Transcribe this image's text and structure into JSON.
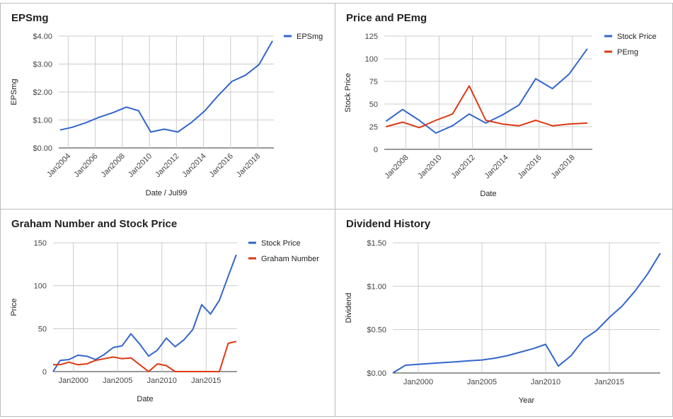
{
  "chart_data": [
    {
      "type": "line",
      "title": "EPSmg",
      "xlabel": "Date / Jul99",
      "ylabel": "EPSmg",
      "ylim": [
        0,
        4
      ],
      "xlim": [
        2003.3,
        2019.2
      ],
      "y_ticks": [
        0,
        1,
        2,
        3,
        4
      ],
      "y_tick_labels": [
        "$0.00",
        "$1.00",
        "$2.00",
        "$3.00",
        "$4.00"
      ],
      "x_ticks": [
        2004,
        2006,
        2008,
        2010,
        2012,
        2014,
        2016,
        2018
      ],
      "x_tick_labels": [
        "Jan2004",
        "Jan2006",
        "Jan2008",
        "Jan2010",
        "Jan2012",
        "Jan2014",
        "Jan2016",
        "Jan2018"
      ],
      "x_tick_rotation": -45,
      "legend_position": "top-right",
      "grid": true,
      "series": [
        {
          "name": "EPSmg",
          "color": "#3366cc",
          "x": [
            2003.4,
            2004.3,
            2005.3,
            2006.3,
            2007.3,
            2008.3,
            2009.2,
            2010.1,
            2011.1,
            2012.1,
            2013.1,
            2014.1,
            2015.1,
            2016.1,
            2017.1,
            2018.1,
            2019.1
          ],
          "y": [
            0.64,
            0.74,
            0.9,
            1.1,
            1.26,
            1.46,
            1.33,
            0.57,
            0.67,
            0.57,
            0.91,
            1.33,
            1.88,
            2.38,
            2.6,
            2.98,
            3.83
          ]
        }
      ]
    },
    {
      "type": "line",
      "title": "Price and PEmg",
      "xlabel": "Date",
      "ylabel": "Stock Price",
      "ylim": [
        0,
        125
      ],
      "xlim": [
        2006.7,
        2019.2
      ],
      "y_ticks": [
        0,
        25,
        50,
        75,
        100,
        125
      ],
      "y_tick_labels": [
        "0",
        "25",
        "50",
        "75",
        "100",
        "125"
      ],
      "x_ticks": [
        2008,
        2010,
        2012,
        2014,
        2016,
        2018
      ],
      "x_tick_labels": [
        "Jan2008",
        "Jan2010",
        "Jan2012",
        "Jan2014",
        "Jan2016",
        "Jan2018"
      ],
      "x_tick_rotation": -45,
      "legend_position": "top-right",
      "grid": true,
      "series": [
        {
          "name": "Stock Price",
          "color": "#3366cc",
          "x": [
            2006.8,
            2007.8,
            2008.8,
            2009.8,
            2010.8,
            2011.8,
            2012.8,
            2013.8,
            2014.8,
            2015.8,
            2016.8,
            2017.8,
            2018.9
          ],
          "y": [
            31,
            44,
            32,
            18,
            26,
            39,
            29,
            38,
            49,
            78,
            67,
            83,
            111
          ]
        },
        {
          "name": "PEmg",
          "color": "#dc3912",
          "x": [
            2006.8,
            2007.8,
            2008.8,
            2009.8,
            2010.8,
            2011.8,
            2012.8,
            2013.8,
            2014.8,
            2015.8,
            2016.8,
            2017.8,
            2018.9
          ],
          "y": [
            25,
            30,
            24,
            32,
            39,
            70,
            32,
            28,
            26,
            32,
            26,
            28,
            29
          ]
        }
      ]
    },
    {
      "type": "line",
      "title": "Graham Number and Stock Price",
      "xlabel": "Date",
      "ylabel": "Price",
      "ylim": [
        0,
        150
      ],
      "xlim": [
        1997.7,
        2018.5
      ],
      "y_ticks": [
        0,
        50,
        100,
        150
      ],
      "y_tick_labels": [
        "0",
        "50",
        "100",
        "150"
      ],
      "x_ticks": [
        2000,
        2005,
        2010,
        2015
      ],
      "x_tick_labels": [
        "Jan2000",
        "Jan2005",
        "Jan2010",
        "Jan2015"
      ],
      "legend_position": "top-right",
      "grid": true,
      "series": [
        {
          "name": "Stock Price",
          "color": "#3366cc",
          "x": [
            1997.7,
            1998.5,
            1999.5,
            2000.5,
            2001.5,
            2002.5,
            2003.5,
            2004.5,
            2005.5,
            2006.5,
            2007.5,
            2008.5,
            2009.5,
            2010.5,
            2011.5,
            2012.5,
            2013.5,
            2014.5,
            2015.5,
            2016.5,
            2017.5,
            2018.4
          ],
          "y": [
            0,
            13,
            14,
            19,
            18,
            14,
            20,
            28,
            30,
            44,
            32,
            18,
            25,
            39,
            29,
            37,
            49,
            78,
            67,
            83,
            111,
            136
          ]
        },
        {
          "name": "Graham Number",
          "color": "#dc3912",
          "x": [
            1997.7,
            1998.5,
            1999.5,
            2000.5,
            2001.5,
            2002.5,
            2003.5,
            2004.5,
            2005.5,
            2006.5,
            2007.5,
            2008.5,
            2009.5,
            2010.5,
            2011.5,
            2012.5,
            2013.5,
            2014.5,
            2015.5,
            2016.5,
            2017.5,
            2018.4
          ],
          "y": [
            8,
            8,
            11,
            8,
            9,
            13,
            15,
            17,
            15,
            16,
            8,
            0,
            9,
            7,
            0,
            0,
            0,
            0,
            0,
            0,
            33,
            35
          ]
        }
      ]
    },
    {
      "type": "line",
      "title": "Dividend History",
      "xlabel": "Year",
      "ylabel": "Dividend",
      "ylim": [
        0,
        1.5
      ],
      "xlim": [
        1998.0,
        2019.0
      ],
      "y_ticks": [
        0,
        0.5,
        1,
        1.5
      ],
      "y_tick_labels": [
        "$0.00",
        "$0.50",
        "$1.00",
        "$1.50"
      ],
      "x_ticks": [
        2000,
        2005,
        2010,
        2015
      ],
      "x_tick_labels": [
        "Jan2000",
        "Jan2005",
        "Jan2010",
        "Jan2015"
      ],
      "legend_position": "none",
      "grid": true,
      "series": [
        {
          "name": "",
          "color": "#3366cc",
          "x": [
            1998,
            1999,
            2000,
            2001,
            2002,
            2003,
            2004,
            2005,
            2006,
            2007,
            2008,
            2009,
            2010,
            2011,
            2012,
            2013,
            2014,
            2015,
            2016,
            2017,
            2018,
            2019
          ],
          "y": [
            0,
            0.09,
            0.1,
            0.11,
            0.12,
            0.13,
            0.14,
            0.15,
            0.17,
            0.2,
            0.24,
            0.28,
            0.33,
            0.08,
            0.2,
            0.39,
            0.49,
            0.64,
            0.77,
            0.94,
            1.14,
            1.38
          ]
        }
      ]
    }
  ]
}
